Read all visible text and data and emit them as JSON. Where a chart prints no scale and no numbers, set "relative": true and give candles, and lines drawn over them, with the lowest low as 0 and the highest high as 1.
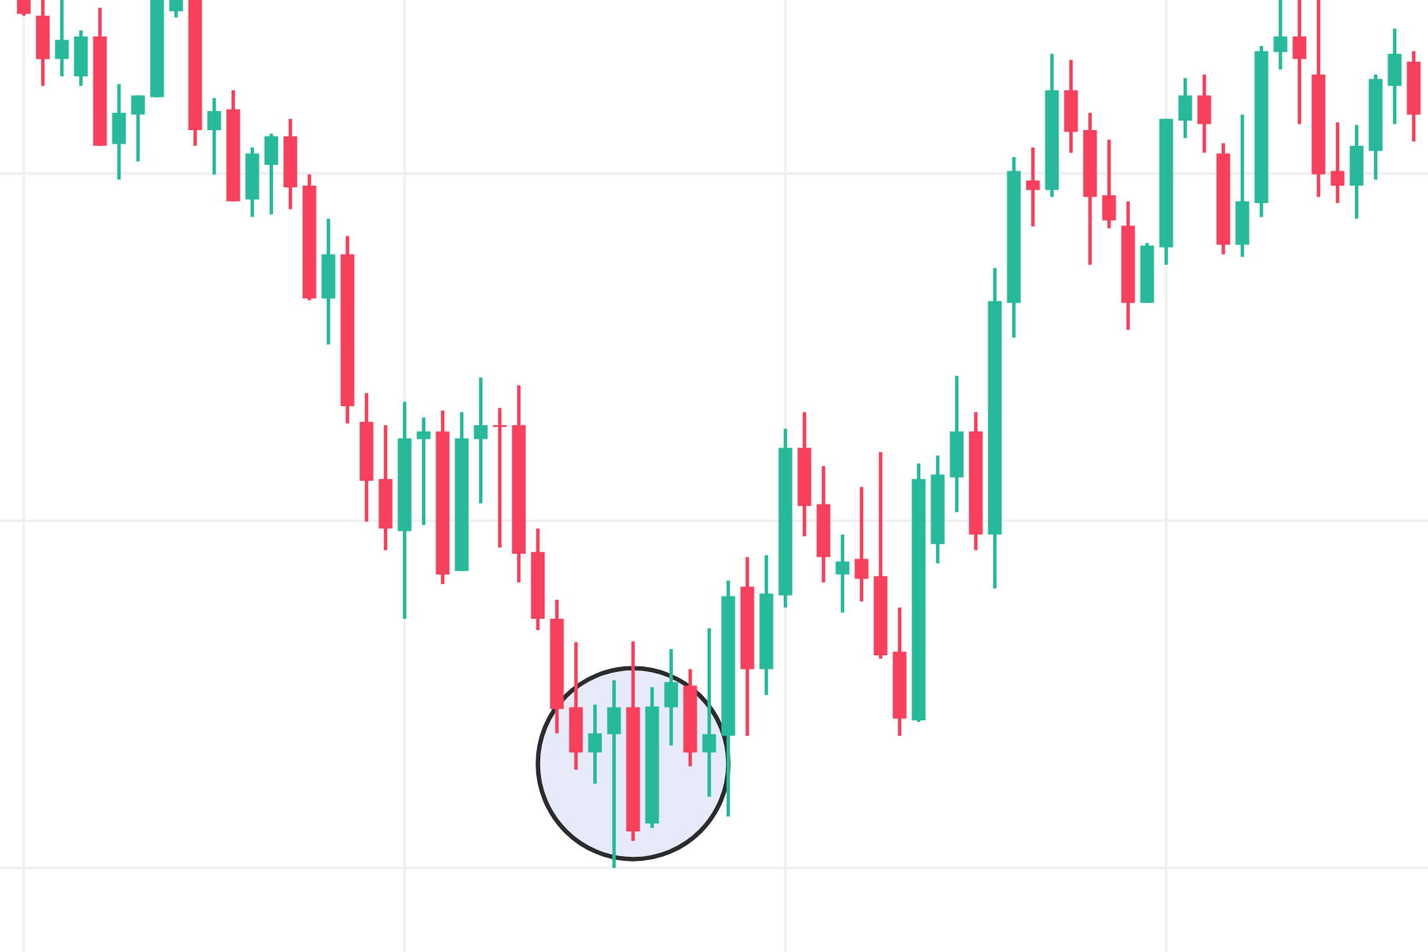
{
  "chart_data": {
    "type": "candlestick",
    "relative": true,
    "grid": true,
    "categories": [
      null,
      null,
      null,
      null,
      null,
      null,
      null,
      null,
      null,
      null,
      null,
      null,
      null,
      null,
      null,
      null,
      null,
      null,
      null,
      null,
      null,
      null,
      null,
      null,
      null,
      null,
      null,
      null,
      null,
      null,
      null,
      null,
      null,
      null,
      null,
      null,
      null,
      null,
      null,
      null,
      null,
      null,
      null,
      null,
      null,
      null,
      null,
      null,
      null,
      null,
      null,
      null,
      null,
      null,
      null,
      null,
      null,
      null,
      null,
      null,
      null,
      null,
      null,
      null,
      null,
      null,
      null,
      null,
      null,
      null,
      null,
      null,
      null,
      null
    ],
    "ohlc": [
      [
        1,
        1,
        0.982,
        0.984
      ],
      [
        0.982,
        1,
        0.901,
        0.932
      ],
      [
        0.932,
        1,
        0.912,
        0.954
      ],
      [
        0.912,
        0.965,
        0.901,
        0.958
      ],
      [
        0.958,
        0.991,
        0.832,
        0.832
      ],
      [
        0.834,
        0.903,
        0.793,
        0.87
      ],
      [
        0.868,
        0.89,
        0.814,
        0.89
      ],
      [
        0.888,
        1,
        0.888,
        1
      ],
      [
        0.987,
        1,
        0.98,
        1
      ],
      [
        1,
        1,
        0.832,
        0.85
      ],
      [
        0.85,
        0.887,
        0.799,
        0.872
      ],
      [
        0.874,
        0.896,
        0.768,
        0.768
      ],
      [
        0.77,
        0.83,
        0.75,
        0.823
      ],
      [
        0.81,
        0.846,
        0.753,
        0.843
      ],
      [
        0.843,
        0.863,
        0.759,
        0.784
      ],
      [
        0.786,
        0.799,
        0.654,
        0.656
      ],
      [
        0.656,
        0.748,
        0.603,
        0.707
      ],
      [
        0.707,
        0.728,
        0.512,
        0.532
      ],
      [
        0.514,
        0.547,
        0.399,
        0.446
      ],
      [
        0.448,
        0.51,
        0.366,
        0.391
      ],
      [
        0.388,
        0.537,
        0.287,
        0.495
      ],
      [
        0.494,
        0.519,
        0.395,
        0.503
      ],
      [
        0.503,
        0.527,
        0.327,
        0.338
      ],
      [
        0.342,
        0.525,
        0.342,
        0.495
      ],
      [
        0.494,
        0.565,
        0.42,
        0.51
      ],
      [
        0.51,
        0.53,
        0.369,
        0.508
      ],
      [
        0.51,
        0.556,
        0.329,
        0.362
      ],
      [
        0.364,
        0.391,
        0.274,
        0.287
      ],
      [
        0.287,
        0.309,
        0.155,
        0.183
      ],
      [
        0.185,
        0.26,
        0.113,
        0.133
      ],
      [
        0.133,
        0.188,
        0.097,
        0.155
      ],
      [
        0.154,
        0.216,
        0,
        0.185
      ],
      [
        0.185,
        0.261,
        0.031,
        0.042
      ],
      [
        0.051,
        0.208,
        0.046,
        0.186
      ],
      [
        0.185,
        0.252,
        0.141,
        0.214
      ],
      [
        0.21,
        0.229,
        0.117,
        0.133
      ],
      [
        0.133,
        0.276,
        0.082,
        0.154
      ],
      [
        0.152,
        0.331,
        0.059,
        0.313
      ],
      [
        0.324,
        0.358,
        0.152,
        0.229
      ],
      [
        0.229,
        0.36,
        0.199,
        0.316
      ],
      [
        0.314,
        0.506,
        0.3,
        0.484
      ],
      [
        0.484,
        0.525,
        0.382,
        0.417
      ],
      [
        0.419,
        0.463,
        0.329,
        0.358
      ],
      [
        0.338,
        0.384,
        0.294,
        0.353
      ],
      [
        0.356,
        0.439,
        0.307,
        0.333
      ],
      [
        0.336,
        0.479,
        0.241,
        0.245
      ],
      [
        0.249,
        0.3,
        0.152,
        0.172
      ],
      [
        0.17,
        0.466,
        0.168,
        0.448
      ],
      [
        0.373,
        0.475,
        0.351,
        0.453
      ],
      [
        0.45,
        0.567,
        0.41,
        0.503
      ],
      [
        0.503,
        0.525,
        0.366,
        0.384
      ],
      [
        0.384,
        0.691,
        0.322,
        0.653
      ],
      [
        0.651,
        0.819,
        0.611,
        0.803
      ],
      [
        0.792,
        0.83,
        0.739,
        0.781
      ],
      [
        0.781,
        0.938,
        0.773,
        0.896
      ],
      [
        0.896,
        0.931,
        0.824,
        0.848
      ],
      [
        0.85,
        0.87,
        0.695,
        0.773
      ],
      [
        0.775,
        0.839,
        0.737,
        0.746
      ],
      [
        0.74,
        0.768,
        0.62,
        0.651
      ],
      [
        0.651,
        0.72,
        0.651,
        0.717
      ],
      [
        0.715,
        0.863,
        0.695,
        0.863
      ],
      [
        0.861,
        0.91,
        0.841,
        0.89
      ],
      [
        0.89,
        0.914,
        0.824,
        0.857
      ],
      [
        0.823,
        0.835,
        0.707,
        0.718
      ],
      [
        0.718,
        0.868,
        0.704,
        0.768
      ],
      [
        0.766,
        0.947,
        0.75,
        0.941
      ],
      [
        0.94,
        1,
        0.92,
        0.958
      ],
      [
        0.958,
        1,
        0.857,
        0.932
      ],
      [
        0.914,
        1,
        0.773,
        0.799
      ],
      [
        0.803,
        0.859,
        0.766,
        0.786
      ],
      [
        0.786,
        0.856,
        0.748,
        0.832
      ],
      [
        0.826,
        0.914,
        0.793,
        0.909
      ],
      [
        0.901,
        0.967,
        0.857,
        0.938
      ],
      [
        0.929,
        0.941,
        0.837,
        0.868
      ]
    ],
    "colors": [
      "#f7405b",
      "#f7405b",
      "#26b99a",
      "#26b99a",
      "#f7405b",
      "#26b99a",
      "#26b99a",
      "#26b99a",
      "#26b99a",
      "#f7405b",
      "#26b99a",
      "#f7405b",
      "#26b99a",
      "#26b99a",
      "#f7405b",
      "#f7405b",
      "#26b99a",
      "#f7405b",
      "#f7405b",
      "#f7405b",
      "#26b99a",
      "#26b99a",
      "#f7405b",
      "#26b99a",
      "#26b99a",
      "#f7405b",
      "#f7405b",
      "#f7405b",
      "#f7405b",
      "#f7405b",
      "#26b99a",
      "#26b99a",
      "#f7405b",
      "#26b99a",
      "#26b99a",
      "#f7405b",
      "#26b99a",
      "#26b99a",
      "#f7405b",
      "#26b99a",
      "#26b99a",
      "#f7405b",
      "#f7405b",
      "#26b99a",
      "#f7405b",
      "#f7405b",
      "#f7405b",
      "#26b99a",
      "#26b99a",
      "#26b99a",
      "#f7405b",
      "#26b99a",
      "#26b99a",
      "#f7405b",
      "#26b99a",
      "#f7405b",
      "#f7405b",
      "#f7405b",
      "#f7405b",
      "#26b99a",
      "#26b99a",
      "#26b99a",
      "#f7405b",
      "#f7405b",
      "#26b99a",
      "#26b99a",
      "#26b99a",
      "#f7405b",
      "#f7405b",
      "#f7405b",
      "#26b99a",
      "#26b99a",
      "#26b99a",
      "#f7405b"
    ]
  }
}
